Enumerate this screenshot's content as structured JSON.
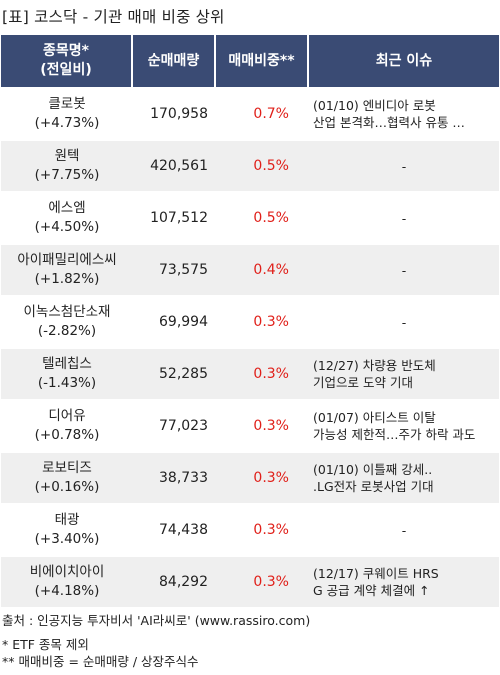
{
  "title": "[표] 코스닥 - 기관 매매 비중 상위",
  "table": {
    "headers": {
      "name_line1": "종목명*",
      "name_line2": "(전일비)",
      "volume": "순매매량",
      "ratio": "매매비중**",
      "issue": "최근 이슈"
    },
    "rows": [
      {
        "name": "클로봇",
        "change": "(+4.73%)",
        "volume": "170,958",
        "ratio": "0.7%",
        "issue1": "(01/10) 엔비디아 로봇",
        "issue2": "산업 본격화…협력사 유통 …"
      },
      {
        "name": "원텍",
        "change": "(+7.75%)",
        "volume": "420,561",
        "ratio": "0.5%",
        "issue1": "-",
        "issue2": ""
      },
      {
        "name": "에스엠",
        "change": "(+4.50%)",
        "volume": "107,512",
        "ratio": "0.5%",
        "issue1": "-",
        "issue2": ""
      },
      {
        "name": "아이패밀리에스씨",
        "change": "(+1.82%)",
        "volume": "73,575",
        "ratio": "0.4%",
        "issue1": "-",
        "issue2": ""
      },
      {
        "name": "이녹스첨단소재",
        "change": "(-2.82%)",
        "volume": "69,994",
        "ratio": "0.3%",
        "issue1": "-",
        "issue2": ""
      },
      {
        "name": "텔레칩스",
        "change": "(-1.43%)",
        "volume": "52,285",
        "ratio": "0.3%",
        "issue1": "(12/27) 차량용 반도체",
        "issue2": "기업으로 도약 기대"
      },
      {
        "name": "디어유",
        "change": "(+0.78%)",
        "volume": "77,023",
        "ratio": "0.3%",
        "issue1": "(01/07) 아티스트 이탈",
        "issue2": "가능성 제한적…주가 하락 과도"
      },
      {
        "name": "로보티즈",
        "change": "(+0.16%)",
        "volume": "38,733",
        "ratio": "0.3%",
        "issue1": "(01/10) 이틀째 강세..",
        "issue2": ".LG전자 로봇사업 기대"
      },
      {
        "name": "태광",
        "change": "(+3.40%)",
        "volume": "74,438",
        "ratio": "0.3%",
        "issue1": "-",
        "issue2": ""
      },
      {
        "name": "비에이치아이",
        "change": "(+4.18%)",
        "volume": "84,292",
        "ratio": "0.3%",
        "issue1": "(12/17) 쿠웨이트 HRS",
        "issue2": "G 공급 계약 체결에 ↑"
      }
    ]
  },
  "footer": {
    "source": "출처 : 인공지능 투자비서 'AI라씨로' (www.rassiro.com)",
    "note1": "* ETF 종목 제외",
    "note2": "** 매매비중 = 순매매량 / 상장주식수"
  }
}
